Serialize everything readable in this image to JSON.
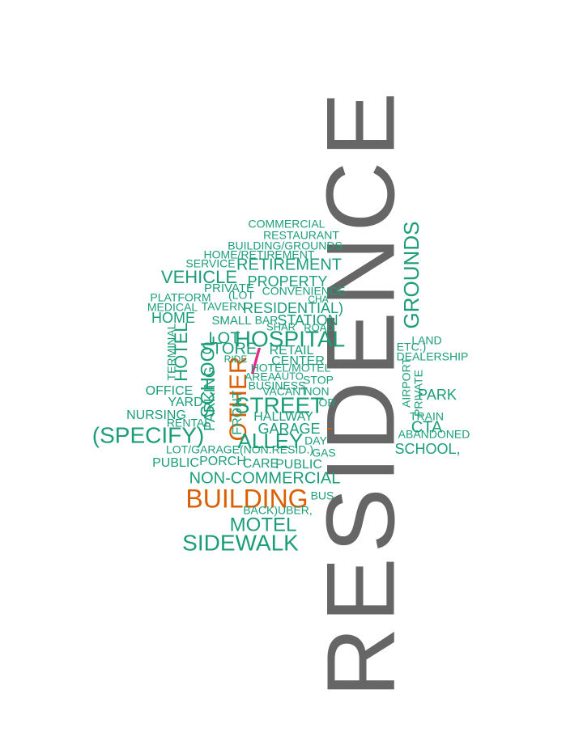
{
  "cloud": {
    "colors": {
      "green": "#1b9e77",
      "orange": "#d95f02",
      "gray": "#666666",
      "pink": "#e7298a"
    },
    "words": [
      {
        "id": "residence",
        "text": "RESIDENCE",
        "color": "gray"
      },
      {
        "id": "grounds",
        "text": "GROUNDS",
        "color": "green"
      },
      {
        "id": "building",
        "text": "BUILDING",
        "color": "orange"
      },
      {
        "id": "other",
        "text": "OTHER",
        "color": "orange"
      },
      {
        "id": "slash",
        "text": "/",
        "color": "pink"
      },
      {
        "id": "dash",
        "text": "-",
        "color": "orange"
      },
      {
        "id": "specify",
        "text": "(SPECIFY)",
        "color": "green"
      },
      {
        "id": "sidewalk",
        "text": "SIDEWALK",
        "color": "green"
      },
      {
        "id": "street",
        "text": "STREET",
        "color": "green"
      },
      {
        "id": "hospital",
        "text": "HOSPITAL",
        "color": "green"
      },
      {
        "id": "alley",
        "text": "ALLEY",
        "color": "green"
      },
      {
        "id": "motel",
        "text": "MOTEL",
        "color": "green"
      },
      {
        "id": "vehicle",
        "text": "VEHICLE",
        "color": "green"
      },
      {
        "id": "non-commercial",
        "text": "NON-COMMERCIAL",
        "color": "green"
      },
      {
        "id": "retirement",
        "text": "RETIREMENT",
        "color": "green"
      },
      {
        "id": "property",
        "text": "PROPERTY",
        "color": "green"
      },
      {
        "id": "residential",
        "text": "RESIDENTIAL)",
        "color": "green"
      },
      {
        "id": "school-upper",
        "text": "SCHOOL",
        "color": "green"
      },
      {
        "id": "hotel-vert",
        "text": "HOTEL",
        "color": "green"
      },
      {
        "id": "parking",
        "text": "PARKING",
        "color": "green"
      },
      {
        "id": "home",
        "text": "HOME",
        "color": "green"
      },
      {
        "id": "lot",
        "text": "LOT",
        "color": "green"
      },
      {
        "id": "store",
        "text": "STORE",
        "color": "green"
      },
      {
        "id": "station",
        "text": "STATION",
        "color": "green"
      },
      {
        "id": "garage",
        "text": "GARAGE",
        "color": "green"
      },
      {
        "id": "park",
        "text": "PARK",
        "color": "green"
      },
      {
        "id": "cta",
        "text": "CTA",
        "color": "green"
      },
      {
        "id": "school-lower",
        "text": "SCHOOL,",
        "color": "green"
      },
      {
        "id": "public-1",
        "text": "PUBLIC",
        "color": "green"
      },
      {
        "id": "public-2",
        "text": "PUBLIC",
        "color": "green"
      },
      {
        "id": "porch",
        "text": "PORCH",
        "color": "green"
      },
      {
        "id": "nursing",
        "text": "NURSING",
        "color": "green"
      },
      {
        "id": "yard",
        "text": "YARD",
        "color": "green"
      },
      {
        "id": "office",
        "text": "OFFICE",
        "color": "green"
      },
      {
        "id": "center",
        "text": "CENTER",
        "color": "green"
      },
      {
        "id": "retail",
        "text": "RETAIL",
        "color": "green"
      },
      {
        "id": "hallway",
        "text": "HALLWAY",
        "color": "green"
      },
      {
        "id": "care",
        "text": "CARE",
        "color": "green"
      },
      {
        "id": "private-1",
        "text": "PRIVATE",
        "color": "green"
      },
      {
        "id": "private-vert",
        "text": "PRIVATE",
        "color": "green"
      },
      {
        "id": "convenience",
        "text": "CONVENIENCE",
        "color": "green"
      },
      {
        "id": "small",
        "text": "SMALL",
        "color": "green"
      },
      {
        "id": "bar",
        "text": "BAR",
        "color": "green"
      },
      {
        "id": "shar",
        "text": "SHAR",
        "color": "green"
      },
      {
        "id": "road",
        "text": "ROAD",
        "color": "green"
      },
      {
        "id": "medical",
        "text": "MEDICAL",
        "color": "green"
      },
      {
        "id": "tavern",
        "text": "TAVERN",
        "color": "green"
      },
      {
        "id": "platform",
        "text": "PLATFORM",
        "color": "green"
      },
      {
        "id": "lot-paren",
        "text": "(LOT",
        "color": "green"
      },
      {
        "id": "commercial",
        "text": "COMMERCIAL",
        "color": "green"
      },
      {
        "id": "restaurant",
        "text": "RESTAURANT",
        "color": "green"
      },
      {
        "id": "building-grounds",
        "text": "BUILDING/GROUNDS",
        "color": "green"
      },
      {
        "id": "home-retirement",
        "text": "HOME/RETIREMENT",
        "color": "green"
      },
      {
        "id": "service",
        "text": "SERVICE",
        "color": "green"
      },
      {
        "id": "terminal",
        "text": "TERMINAL",
        "color": "green"
      },
      {
        "id": "rental",
        "text": "RENTAL",
        "color": "green"
      },
      {
        "id": "ride",
        "text": "RIDE",
        "color": "green"
      },
      {
        "id": "hotel-motel",
        "text": "HOTEL/MOTEL",
        "color": "green"
      },
      {
        "id": "area",
        "text": "AREA",
        "color": "green"
      },
      {
        "id": "auto",
        "text": "AUTO",
        "color": "green"
      },
      {
        "id": "stop",
        "text": "STOP",
        "color": "green"
      },
      {
        "id": "business",
        "text": "BUSINESS",
        "color": "green"
      },
      {
        "id": "non",
        "text": "NON",
        "color": "green"
      },
      {
        "id": "vacant",
        "text": "VACANT",
        "color": "green"
      },
      {
        "id": "or",
        "text": "OR",
        "color": "green"
      },
      {
        "id": "front",
        "text": "FRONT",
        "color": "green"
      },
      {
        "id": "day",
        "text": "DAY",
        "color": "green"
      },
      {
        "id": "gas",
        "text": "GAS",
        "color": "green"
      },
      {
        "id": "lot-garage",
        "text": "LOT/GARAGE(NON.RESID.)",
        "color": "green"
      },
      {
        "id": "bus",
        "text": "BUS",
        "color": "green"
      },
      {
        "id": "back-uber",
        "text": "BACK)UBER,",
        "color": "green"
      },
      {
        "id": "land",
        "text": "LAND",
        "color": "green"
      },
      {
        "id": "etc",
        "text": "ETC.)",
        "color": "green"
      },
      {
        "id": "dealership",
        "text": "DEALERSHIP",
        "color": "green"
      },
      {
        "id": "airport",
        "text": "AIRPORT",
        "color": "green"
      },
      {
        "id": "train",
        "text": "TRAIN",
        "color": "green"
      },
      {
        "id": "abandoned",
        "text": "ABANDONED",
        "color": "green"
      },
      {
        "id": "cha",
        "text": "CHA",
        "color": "green"
      }
    ]
  }
}
